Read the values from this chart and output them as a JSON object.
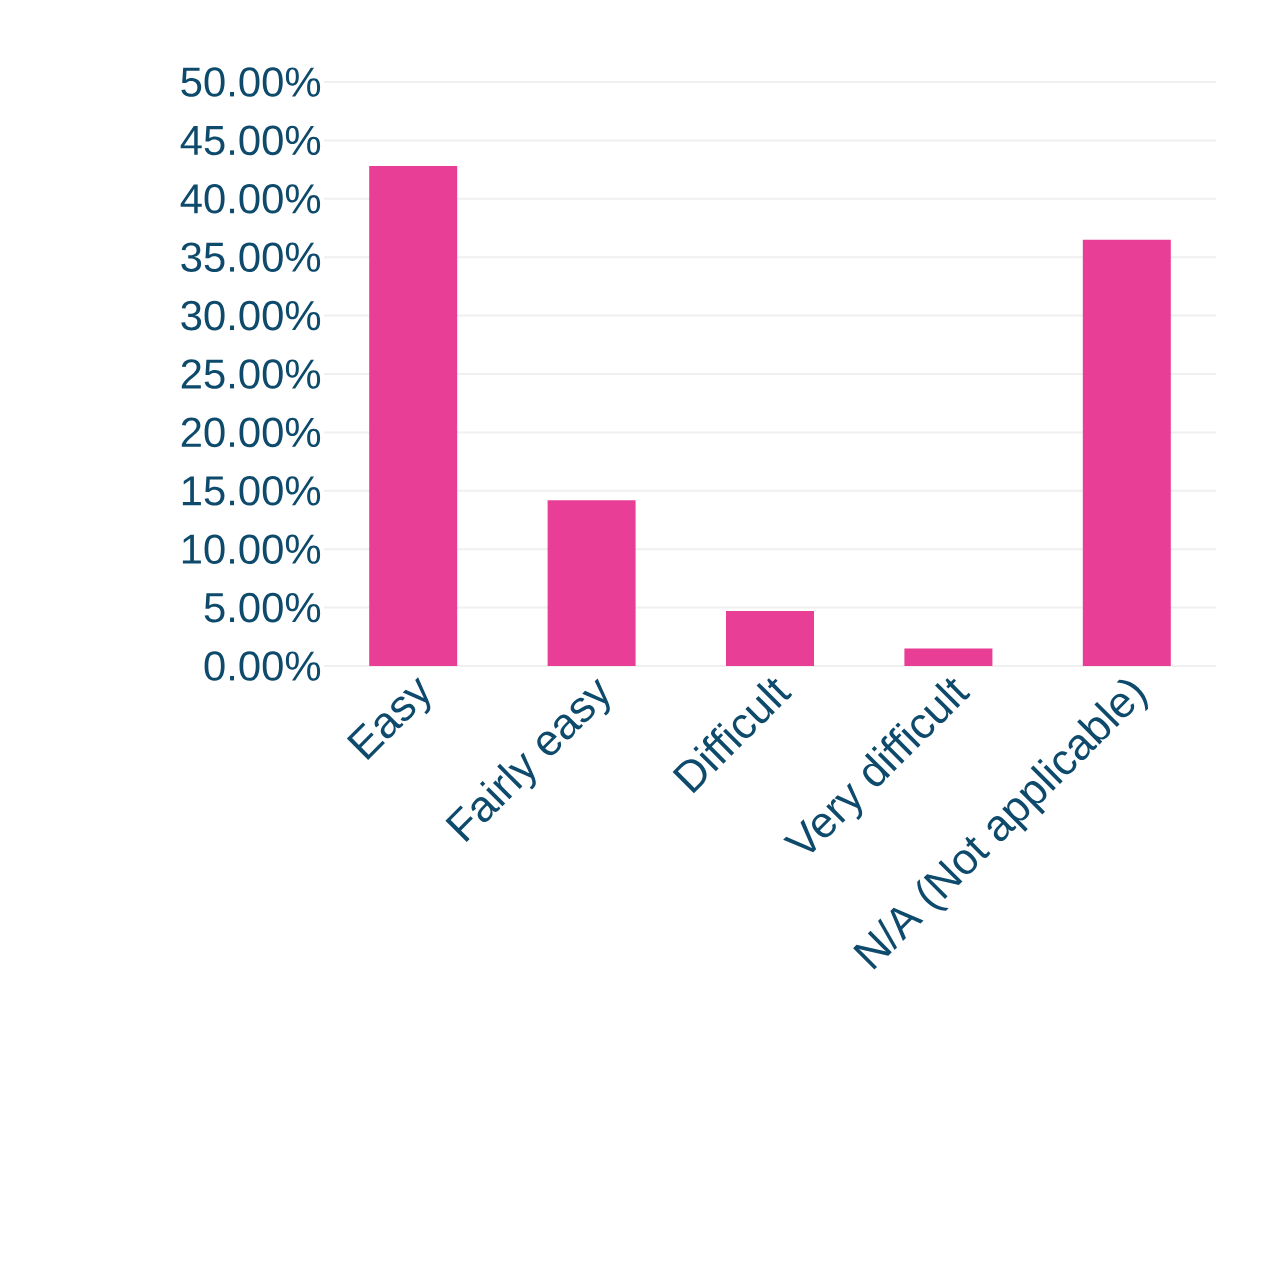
{
  "chart_data": {
    "type": "bar",
    "categories": [
      "Easy",
      "Fairly easy",
      "Difficult",
      "Very difficult",
      "N/A (Not applicable)"
    ],
    "values": [
      42.8,
      14.2,
      4.7,
      1.5,
      36.5
    ],
    "color": "#e83e96",
    "ylim": [
      0,
      50
    ],
    "yticks": [
      {
        "value": 0,
        "label": "0.00%"
      },
      {
        "value": 5,
        "label": "5.00%"
      },
      {
        "value": 10,
        "label": "10.00%"
      },
      {
        "value": 15,
        "label": "15.00%"
      },
      {
        "value": 20,
        "label": "20.00%"
      },
      {
        "value": 25,
        "label": "25.00%"
      },
      {
        "value": 30,
        "label": "30.00%"
      },
      {
        "value": 35,
        "label": "35.00%"
      },
      {
        "value": 40,
        "label": "40.00%"
      },
      {
        "value": 45,
        "label": "45.00%"
      },
      {
        "value": 50,
        "label": "50.00%"
      }
    ],
    "grid": "y"
  }
}
